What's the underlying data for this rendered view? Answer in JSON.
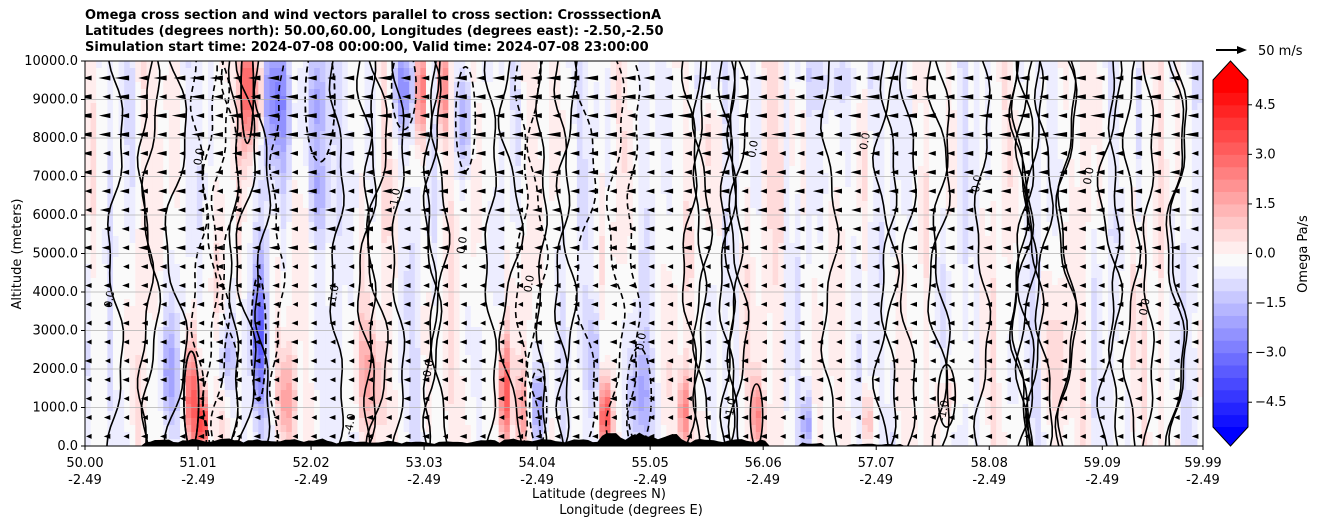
{
  "chart_data": {
    "type": "heatmap",
    "title": [
      "Omega cross section and wind vectors parallel to cross section: CrosssectionA",
      "Latitudes (degrees north): 50.00,60.00, Longitudes (degrees east): -2.50,-2.50",
      "Simulation start time: 2024-07-08 00:00:00, Valid time: 2024-07-08 23:00:00"
    ],
    "ylabel": "Altitude (meters)",
    "xlabel_lat": "Latitude (degrees N)",
    "xlabel_lon": "Longitude (degrees E)",
    "ylim": [
      0,
      10000
    ],
    "xlim": [
      50.0,
      59.99
    ],
    "y_ticks": [
      {
        "value": 0,
        "label": "0.0"
      },
      {
        "value": 1000,
        "label": "1000.0"
      },
      {
        "value": 2000,
        "label": "2000.0"
      },
      {
        "value": 3000,
        "label": "3000.0"
      },
      {
        "value": 4000,
        "label": "4000.0"
      },
      {
        "value": 5000,
        "label": "5000.0"
      },
      {
        "value": 6000,
        "label": "6000.0"
      },
      {
        "value": 7000,
        "label": "7000.0"
      },
      {
        "value": 8000,
        "label": "8000.0"
      },
      {
        "value": 9000,
        "label": "9000.0"
      },
      {
        "value": 10000,
        "label": "10000.0"
      }
    ],
    "x_ticks": [
      {
        "value": 50.0,
        "lat": "50.00",
        "lon": "-2.49"
      },
      {
        "value": 51.01,
        "lat": "51.01",
        "lon": "-2.49"
      },
      {
        "value": 52.02,
        "lat": "52.02",
        "lon": "-2.49"
      },
      {
        "value": 53.03,
        "lat": "53.03",
        "lon": "-2.49"
      },
      {
        "value": 54.04,
        "lat": "54.04",
        "lon": "-2.49"
      },
      {
        "value": 55.05,
        "lat": "55.05",
        "lon": "-2.49"
      },
      {
        "value": 56.06,
        "lat": "56.06",
        "lon": "-2.49"
      },
      {
        "value": 57.07,
        "lat": "57.07",
        "lon": "-2.49"
      },
      {
        "value": 58.08,
        "lat": "58.08",
        "lon": "-2.49"
      },
      {
        "value": 59.09,
        "lat": "59.09",
        "lon": "-2.49"
      },
      {
        "value": 59.99,
        "lat": "59.99",
        "lon": "-2.49"
      }
    ],
    "grid": true,
    "colorbar": {
      "label": "Omega Pa/s",
      "range": [
        -5.25,
        5.25
      ],
      "step": 0.375,
      "ticks": [
        {
          "value": 4.5,
          "label": "4.5"
        },
        {
          "value": 3.0,
          "label": "3.0"
        },
        {
          "value": 1.5,
          "label": "1.5"
        },
        {
          "value": 0.0,
          "label": "0.0"
        },
        {
          "value": -1.5,
          "label": "−1.5"
        },
        {
          "value": -3.0,
          "label": "−3.0"
        },
        {
          "value": -4.5,
          "label": "−4.5"
        }
      ],
      "colors": {
        "positive": "#ff0000",
        "negative": "#0000ff",
        "neutral": "#ffffff"
      }
    },
    "quiver_key": {
      "label": "50 m/s",
      "speed": 50
    },
    "omega_features": [
      {
        "x": 50.95,
        "y": 1200,
        "val": 3.5,
        "w": 0.06,
        "h": 1400
      },
      {
        "x": 51.05,
        "y": 600,
        "val": 4.5,
        "w": 0.05,
        "h": 800
      },
      {
        "x": 50.75,
        "y": 1800,
        "val": -1.8,
        "w": 0.08,
        "h": 1500
      },
      {
        "x": 51.45,
        "y": 9300,
        "val": 4.2,
        "w": 0.05,
        "h": 1600
      },
      {
        "x": 51.55,
        "y": 9200,
        "val": 3.0,
        "w": 0.04,
        "h": 1400
      },
      {
        "x": 51.7,
        "y": 9000,
        "val": -2.2,
        "w": 0.15,
        "h": 1800
      },
      {
        "x": 51.55,
        "y": 2800,
        "val": -3.0,
        "w": 0.06,
        "h": 1800
      },
      {
        "x": 51.25,
        "y": 2300,
        "val": -1.5,
        "w": 0.08,
        "h": 1000
      },
      {
        "x": 51.8,
        "y": 1200,
        "val": 1.9,
        "w": 0.07,
        "h": 1200
      },
      {
        "x": 52.1,
        "y": 9000,
        "val": -2.0,
        "w": 0.12,
        "h": 1800
      },
      {
        "x": 52.1,
        "y": 6500,
        "val": -1.5,
        "w": 0.1,
        "h": 1200
      },
      {
        "x": 52.55,
        "y": 1800,
        "val": 1.4,
        "w": 0.14,
        "h": 1300
      },
      {
        "x": 52.85,
        "y": 9300,
        "val": -2.3,
        "w": 0.1,
        "h": 1200
      },
      {
        "x": 53.0,
        "y": 9300,
        "val": 3.8,
        "w": 0.05,
        "h": 1300
      },
      {
        "x": 53.2,
        "y": 9200,
        "val": 2.6,
        "w": 0.05,
        "h": 1200
      },
      {
        "x": 53.4,
        "y": 8500,
        "val": -1.8,
        "w": 0.08,
        "h": 1500
      },
      {
        "x": 53.75,
        "y": 1300,
        "val": 4.0,
        "w": 0.05,
        "h": 1500
      },
      {
        "x": 53.9,
        "y": 900,
        "val": 1.6,
        "w": 0.06,
        "h": 1000
      },
      {
        "x": 54.05,
        "y": 1000,
        "val": -1.9,
        "w": 0.07,
        "h": 1100
      },
      {
        "x": 54.55,
        "y": 2500,
        "val": -1.3,
        "w": 0.1,
        "h": 1500
      },
      {
        "x": 54.65,
        "y": 800,
        "val": 3.6,
        "w": 0.05,
        "h": 900
      },
      {
        "x": 54.95,
        "y": 1300,
        "val": -1.6,
        "w": 0.1,
        "h": 1400
      },
      {
        "x": 55.35,
        "y": 900,
        "val": 2.6,
        "w": 0.05,
        "h": 1000
      },
      {
        "x": 55.55,
        "y": 9500,
        "val": -0.9,
        "w": 0.1,
        "h": 800
      },
      {
        "x": 56.0,
        "y": 800,
        "val": 2.4,
        "w": 0.05,
        "h": 900
      },
      {
        "x": 56.45,
        "y": 600,
        "val": -1.6,
        "w": 0.05,
        "h": 700
      },
      {
        "x": 57.0,
        "y": 700,
        "val": 1.6,
        "w": 0.05,
        "h": 800
      },
      {
        "x": 57.7,
        "y": 1300,
        "val": 1.2,
        "w": 0.07,
        "h": 900
      },
      {
        "x": 58.7,
        "y": 2200,
        "val": 0.5,
        "w": 0.15,
        "h": 1500
      },
      {
        "x": 56.7,
        "y": 9500,
        "val": -0.7,
        "w": 0.3,
        "h": 800
      }
    ],
    "contour_labels": [
      {
        "x": 52.25,
        "y": 3900,
        "label": "-1.0"
      },
      {
        "x": 53.1,
        "y": 2000,
        "label": "0.0"
      },
      {
        "x": 52.4,
        "y": 550,
        "label": "-4.0"
      },
      {
        "x": 51.05,
        "y": 7500,
        "label": "0.0"
      },
      {
        "x": 50.25,
        "y": 3800,
        "label": "0.0"
      },
      {
        "x": 52.8,
        "y": 6400,
        "label": "-1.0"
      },
      {
        "x": 53.4,
        "y": 5200,
        "label": "0.0"
      },
      {
        "x": 54.0,
        "y": 4200,
        "label": "0.0"
      },
      {
        "x": 55.0,
        "y": 2700,
        "label": "0.0"
      },
      {
        "x": 56.0,
        "y": 7700,
        "label": "0.0"
      },
      {
        "x": 57.0,
        "y": 7900,
        "label": "0.0"
      },
      {
        "x": 58.0,
        "y": 6800,
        "label": "0.0"
      },
      {
        "x": 59.0,
        "y": 7000,
        "label": "0.0"
      },
      {
        "x": 59.5,
        "y": 3600,
        "label": "0.0"
      },
      {
        "x": 57.7,
        "y": 900,
        "label": "-1.0"
      },
      {
        "x": 55.8,
        "y": 950,
        "label": "-1.0"
      }
    ]
  }
}
